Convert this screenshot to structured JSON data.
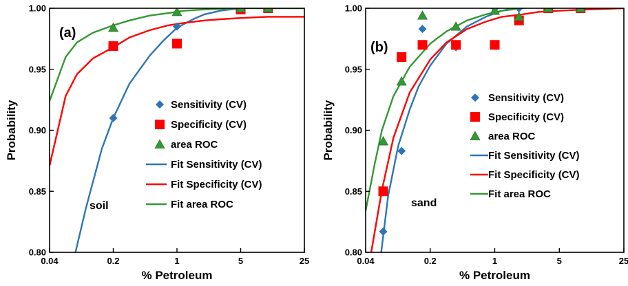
{
  "chart_data": [
    {
      "type": "scatter",
      "panel_label": "(a)",
      "annotation": "soil",
      "xlabel": "% Petroleum",
      "ylabel": "Probability",
      "x_scale": "log",
      "xlim": [
        0.04,
        25
      ],
      "ylim": [
        0.8,
        1.0
      ],
      "xticks": [
        0.04,
        0.2,
        1,
        5,
        25
      ],
      "xtick_labels": [
        "0.04",
        "0.2",
        "1",
        "5",
        "25"
      ],
      "yticks": [
        0.8,
        0.85,
        0.9,
        0.95,
        1.0
      ],
      "ytick_labels": [
        "0.80",
        "0.85",
        "0.90",
        "0.95",
        "1.00"
      ],
      "grid": false,
      "legend_position": "right",
      "series": [
        {
          "name": "Sensitivity (CV)",
          "kind": "points",
          "marker": "diamond",
          "color": "#2e75b6",
          "x": [
            0.2,
            1,
            5,
            10
          ],
          "y": [
            0.91,
            0.985,
            1.0,
            1.0
          ]
        },
        {
          "name": "Specificity (CV)",
          "kind": "points",
          "marker": "square",
          "color": "#ff0000",
          "x": [
            0.2,
            1,
            5,
            10
          ],
          "y": [
            0.969,
            0.971,
            0.999,
            1.0
          ]
        },
        {
          "name": "area ROC",
          "kind": "points",
          "marker": "triangle",
          "color": "#339933",
          "x": [
            0.2,
            1,
            5,
            10
          ],
          "y": [
            0.984,
            0.997,
            1.0,
            1.0
          ]
        },
        {
          "name": "Fit Sensitivity (CV)",
          "kind": "line",
          "color": "#2e75b6",
          "x": [
            0.077,
            0.1,
            0.15,
            0.2,
            0.3,
            0.5,
            0.7,
            1,
            1.5,
            2,
            3,
            5,
            8,
            12,
            18,
            25
          ],
          "y": [
            0.8,
            0.836,
            0.885,
            0.91,
            0.938,
            0.961,
            0.973,
            0.984,
            0.991,
            0.995,
            0.998,
            1.0,
            1.001,
            1.002,
            1.003,
            1.003
          ]
        },
        {
          "name": "Fit Specificity (CV)",
          "kind": "line",
          "color": "#ff0000",
          "x": [
            0.04,
            0.06,
            0.08,
            0.12,
            0.2,
            0.3,
            0.5,
            0.8,
            1.2,
            2,
            3,
            5,
            10,
            25
          ],
          "y": [
            0.871,
            0.928,
            0.946,
            0.959,
            0.968,
            0.976,
            0.982,
            0.986,
            0.988,
            0.99,
            0.991,
            0.992,
            0.993,
            0.993
          ]
        },
        {
          "name": "Fit area ROC",
          "kind": "line",
          "color": "#339933",
          "x": [
            0.04,
            0.06,
            0.08,
            0.12,
            0.2,
            0.3,
            0.5,
            0.8,
            1.2,
            2,
            3,
            5,
            10,
            25
          ],
          "y": [
            0.924,
            0.96,
            0.972,
            0.98,
            0.986,
            0.99,
            0.994,
            0.996,
            0.998,
            0.999,
            0.9995,
            1.0,
            1.0,
            1.0
          ]
        }
      ]
    },
    {
      "type": "scatter",
      "panel_label": "(b)",
      "annotation": "sand",
      "xlabel": "%  Petroleum",
      "ylabel": "Probability",
      "x_scale": "log",
      "xlim": [
        0.04,
        25
      ],
      "ylim": [
        0.8,
        1.0
      ],
      "xticks": [
        0.04,
        0.2,
        1,
        5,
        25
      ],
      "xtick_labels": [
        "0.04",
        "0.2",
        "1",
        "5",
        "25"
      ],
      "yticks": [
        0.8,
        0.85,
        0.9,
        0.95,
        1.0
      ],
      "ytick_labels": [
        "0.80",
        "0.85",
        "0.90",
        "0.95",
        "1.00"
      ],
      "grid": false,
      "legend_position": "right",
      "series": [
        {
          "name": "Sensitivity (CV)",
          "kind": "points",
          "marker": "diamond",
          "color": "#2e75b6",
          "x": [
            0.062,
            0.098,
            0.165,
            0.38,
            1.0,
            1.83,
            3.8,
            8.5
          ],
          "y": [
            0.817,
            0.883,
            0.983,
            0.968,
            1.0,
            1.0,
            1.0,
            1.0
          ]
        },
        {
          "name": "Specificity (CV)",
          "kind": "points",
          "marker": "square",
          "color": "#ff0000",
          "x": [
            0.062,
            0.098,
            0.165,
            0.38,
            1.0,
            1.83,
            3.8,
            8.5
          ],
          "y": [
            0.85,
            0.96,
            0.97,
            0.97,
            0.97,
            0.99,
            1.0,
            1.0
          ]
        },
        {
          "name": "area ROC",
          "kind": "points",
          "marker": "triangle",
          "color": "#339933",
          "x": [
            0.062,
            0.098,
            0.165,
            0.38,
            1.0,
            1.83,
            3.8,
            8.5
          ],
          "y": [
            0.891,
            0.94,
            0.994,
            0.985,
            0.998,
            0.993,
            1.0,
            1.0
          ]
        },
        {
          "name": "Fit Sensitivity (CV)",
          "kind": "line",
          "color": "#2e75b6",
          "x": [
            0.059,
            0.07,
            0.09,
            0.12,
            0.15,
            0.2,
            0.3,
            0.5,
            0.8,
            1.2,
            2,
            3,
            5,
            10,
            25
          ],
          "y": [
            0.8,
            0.846,
            0.887,
            0.917,
            0.936,
            0.953,
            0.971,
            0.985,
            0.993,
            0.998,
            1.002,
            1.004,
            1.006,
            1.007,
            1.008
          ]
        },
        {
          "name": "Fit Specificity (CV)",
          "kind": "line",
          "color": "#ff0000",
          "x": [
            0.046,
            0.06,
            0.08,
            0.12,
            0.2,
            0.3,
            0.5,
            0.8,
            1.2,
            2,
            3,
            5,
            10,
            25
          ],
          "y": [
            0.8,
            0.851,
            0.894,
            0.931,
            0.958,
            0.972,
            0.983,
            0.989,
            0.993,
            0.995,
            0.997,
            0.998,
            0.999,
            1.0
          ]
        },
        {
          "name": "Fit area ROC",
          "kind": "line",
          "color": "#339933",
          "x": [
            0.04,
            0.05,
            0.06,
            0.08,
            0.12,
            0.2,
            0.3,
            0.5,
            0.8,
            1.2,
            2,
            3,
            5,
            10,
            25
          ],
          "y": [
            0.834,
            0.872,
            0.9,
            0.928,
            0.952,
            0.971,
            0.981,
            0.99,
            0.995,
            0.998,
            1.0,
            1.002,
            1.003,
            1.004,
            1.004
          ]
        }
      ]
    }
  ]
}
